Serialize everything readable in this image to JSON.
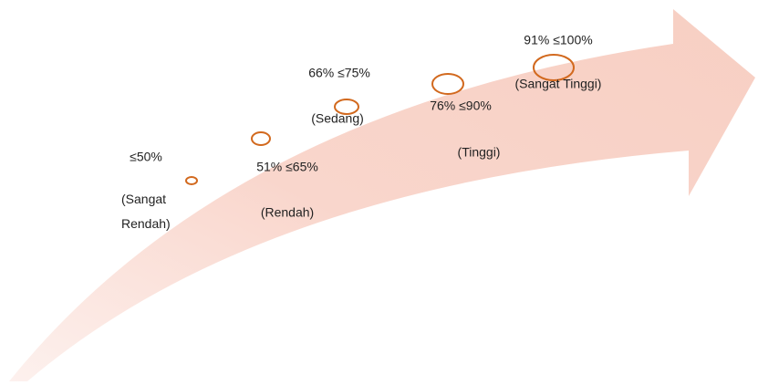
{
  "levels": [
    {
      "range": "≤50%",
      "category": "(Sangat Rendah)"
    },
    {
      "range": "51% ≤65%",
      "category": "(Rendah)"
    },
    {
      "range": "66% ≤75%",
      "category": "(Sedang)"
    },
    {
      "range": "76% ≤90%",
      "category": "(Tinggi)"
    },
    {
      "range": "91% ≤100%",
      "category": "(Sangat Tinggi)"
    }
  ]
}
